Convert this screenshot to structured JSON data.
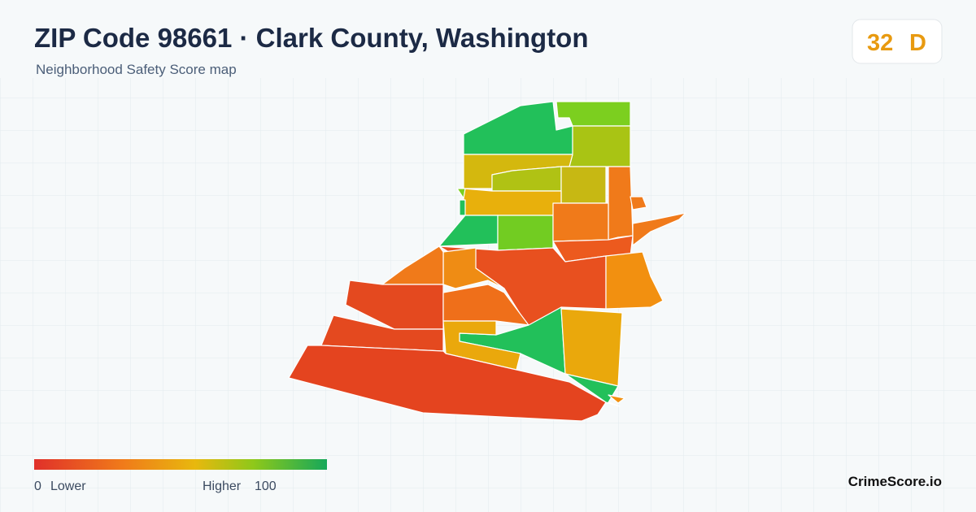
{
  "header": {
    "title": "ZIP Code 98661 · Clark County, Washington",
    "subtitle": "Neighborhood Safety Score map"
  },
  "score": {
    "value": 32,
    "grade": "D"
  },
  "legend": {
    "min": 0,
    "min_label": "Lower",
    "max_label": "Higher",
    "max": 100
  },
  "brand": "CrimeScore.io"
}
